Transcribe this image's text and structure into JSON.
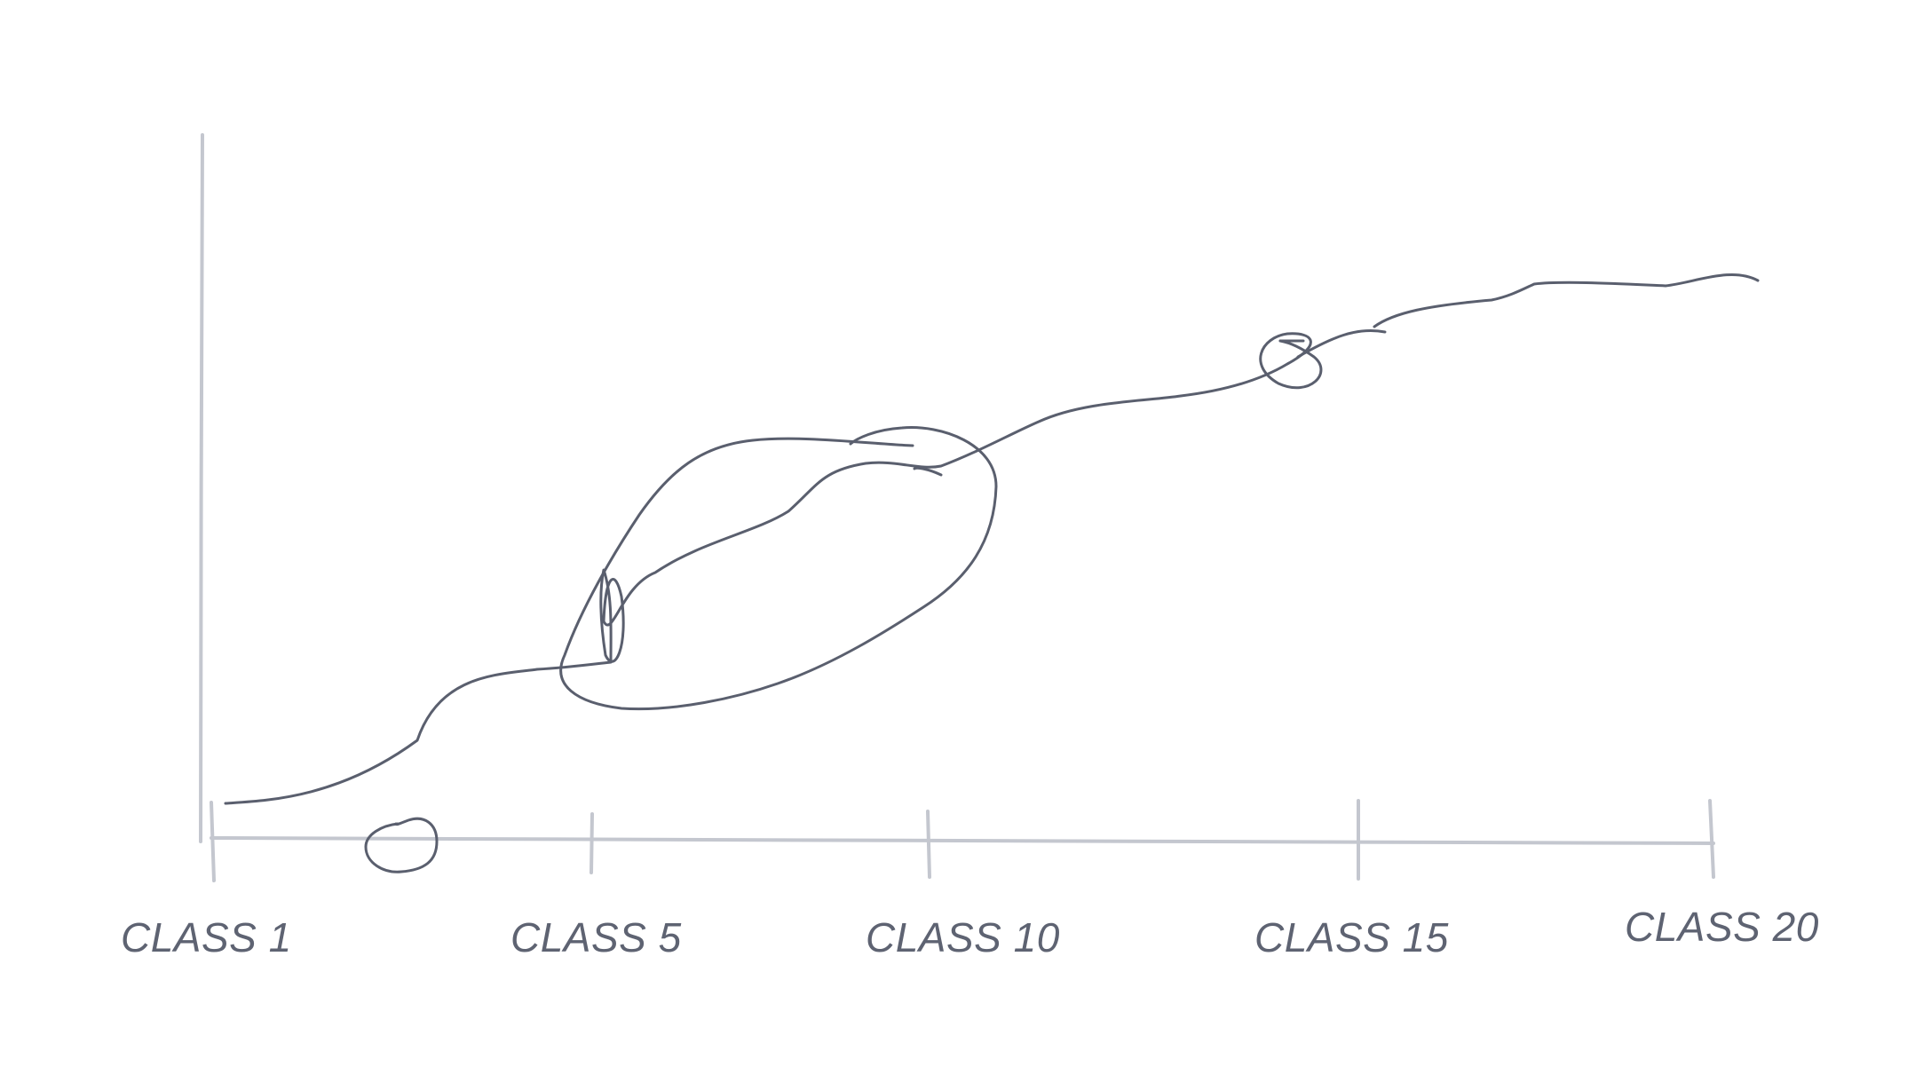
{
  "diagram": {
    "type": "hand-drawn progression sketch",
    "x_axis": {
      "tick_labels": [
        "CLASS 1",
        "CLASS 5",
        "CLASS 10",
        "CLASS 15",
        "CLASS 20"
      ]
    },
    "y_axis": {
      "label": ""
    },
    "colors": {
      "axis": "#c4c7cf",
      "curve": "#5a5f6e",
      "text": "#5e6372",
      "background": "#ffffff"
    }
  }
}
